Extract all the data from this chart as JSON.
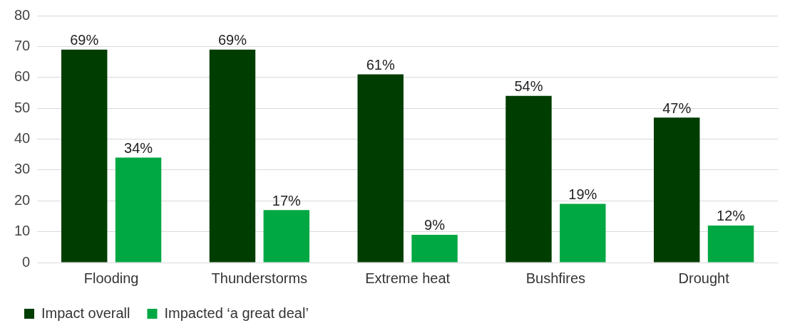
{
  "chart_data": {
    "type": "bar",
    "categories": [
      "Flooding",
      "Thunderstorms",
      "Extreme heat",
      "Bushfires",
      "Drought"
    ],
    "series": [
      {
        "name": "Impact overall",
        "color": "#003d00",
        "values": [
          69,
          69,
          61,
          54,
          47
        ],
        "value_labels": [
          "69%",
          "69%",
          "61%",
          "54%",
          "47%"
        ]
      },
      {
        "name": "Impacted ‘a great deal’",
        "color": "#00a843",
        "values": [
          34,
          17,
          9,
          19,
          12
        ],
        "value_labels": [
          "34%",
          "17%",
          "9%",
          "19%",
          "12%"
        ]
      }
    ],
    "ylim": [
      0,
      80
    ],
    "yticks": [
      0,
      10,
      20,
      30,
      40,
      50,
      60,
      70,
      80
    ],
    "grid": "y",
    "legend": "bottom left"
  }
}
